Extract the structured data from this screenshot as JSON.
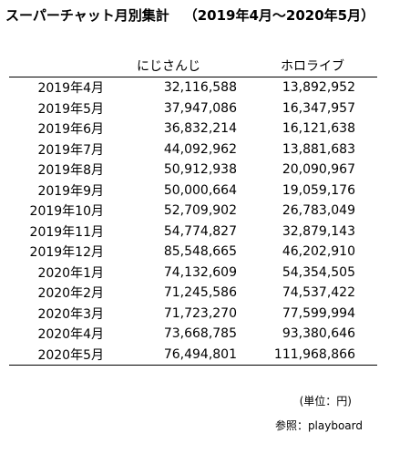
{
  "title": {
    "main": "スーパーチャット月別集計",
    "range": "（2019年4月～2020年5月）"
  },
  "table": {
    "headers": [
      "",
      "にじさんじ",
      "ホロライブ"
    ],
    "rows": [
      {
        "month": "2019年4月",
        "nijisanji": "32,116,588",
        "hololive": "13,892,952"
      },
      {
        "month": "2019年5月",
        "nijisanji": "37,947,086",
        "hololive": "16,347,957"
      },
      {
        "month": "2019年6月",
        "nijisanji": "36,832,214",
        "hololive": "16,121,638"
      },
      {
        "month": "2019年7月",
        "nijisanji": "44,092,962",
        "hololive": "13,881,683"
      },
      {
        "month": "2019年8月",
        "nijisanji": "50,912,938",
        "hololive": "20,090,967"
      },
      {
        "month": "2019年9月",
        "nijisanji": "50,000,664",
        "hololive": "19,059,176"
      },
      {
        "month": "2019年10月",
        "nijisanji": "52,709,902",
        "hololive": "26,783,049"
      },
      {
        "month": "2019年11月",
        "nijisanji": "54,774,827",
        "hololive": "32,879,143"
      },
      {
        "month": "2019年12月",
        "nijisanji": "85,548,665",
        "hololive": "46,202,910"
      },
      {
        "month": "2020年1月",
        "nijisanji": "74,132,609",
        "hololive": "54,354,505"
      },
      {
        "month": "2020年2月",
        "nijisanji": "71,245,586",
        "hololive": "74,537,422"
      },
      {
        "month": "2020年3月",
        "nijisanji": "71,723,270",
        "hololive": "77,599,994"
      },
      {
        "month": "2020年4月",
        "nijisanji": "73,668,785",
        "hololive": "93,380,646"
      },
      {
        "month": "2020年5月",
        "nijisanji": "76,494,801",
        "hololive": "111,968,866"
      }
    ]
  },
  "footer": {
    "unit": "(単位：円)",
    "source": "参照：playboard"
  }
}
